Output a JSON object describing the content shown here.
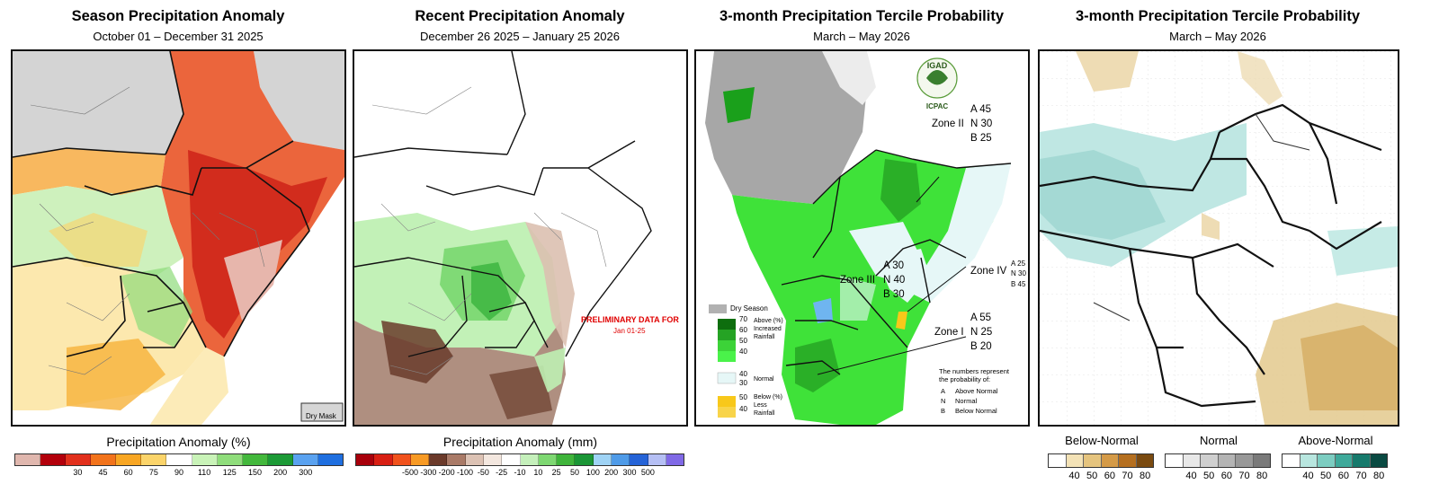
{
  "panels": [
    {
      "title": "Season Precipitation Anomaly",
      "subtitle": "October 01 – December 31 2025",
      "legend_title": "Precipitation Anomaly (%)",
      "dry_mask": "Dry Mask"
    },
    {
      "title": "Recent Precipitation Anomaly",
      "subtitle": "December 26 2025 – January 25 2026",
      "legend_title": "Precipitation Anomaly (mm)",
      "note_title": "PRELIMINARY DATA FOR",
      "note_sub": "Jan 01-25"
    },
    {
      "title": "3-month Precipitation Tercile Probability",
      "subtitle": "March – May 2026",
      "logo_text": "IGAD",
      "logo_sub": "ICPAC"
    },
    {
      "title": "3-month Precipitation Tercile Probability",
      "subtitle": "March – May 2026"
    }
  ],
  "legend1": {
    "colors": [
      "#e0b7ae",
      "#b3000b",
      "#e2301c",
      "#f2731b",
      "#f8a623",
      "#fbd46a",
      "#ffffff",
      "#c9f3b8",
      "#8fdd7b",
      "#43b83c",
      "#1c9a36",
      "#5aa2f0",
      "#1f6fe0"
    ],
    "ticks": [
      "30",
      "45",
      "60",
      "75",
      "90",
      "110",
      "125",
      "150",
      "200",
      "300"
    ]
  },
  "legend2": {
    "colors": [
      "#a8000b",
      "#d81f13",
      "#f1521c",
      "#f79a24",
      "#6b3a2a",
      "#a97a67",
      "#dcc2b4",
      "#f3e7df",
      "#ffffff",
      "#c5f0bb",
      "#7ed872",
      "#3fb43b",
      "#1b9636",
      "#9fd3f5",
      "#4f9be8",
      "#2563d7",
      "#b5bff4",
      "#8069e6"
    ],
    "ticks": [
      "-500",
      "-300",
      "-200",
      "-100",
      "-50",
      "-25",
      "-10",
      "10",
      "25",
      "50",
      "100",
      "200",
      "300",
      "500"
    ]
  },
  "panel3_legend": {
    "dry_season": "Dry Season",
    "above": [
      "70",
      "60",
      "50",
      "40"
    ],
    "above_label": "Above (%) Increased Rainfall",
    "normal": [
      "40",
      "30"
    ],
    "normal_label": "Normal",
    "below": [
      "50",
      "40"
    ],
    "below_label": "Below (%) Less Rainfall",
    "colors": {
      "dry": "#b1b1b1",
      "a70": "#0e6e0e",
      "a60": "#25a324",
      "a50": "#3cd338",
      "a40": "#4af24a",
      "normal": "#e6f7f7",
      "below": "#f8c81a"
    }
  },
  "zones": [
    {
      "name": "Zone II",
      "A": "A 45",
      "N": "N 30",
      "B": "B 25"
    },
    {
      "name": "Zone III",
      "A": "A 30",
      "N": "N 40",
      "B": "B 30"
    },
    {
      "name": "Zone IV",
      "A": "A 25",
      "N": "N 30",
      "B": "B 45"
    },
    {
      "name": "Zone I",
      "A": "A 55",
      "N": "N 25",
      "B": "B 20"
    }
  ],
  "numbers_note": {
    "line1": "The numbers represent",
    "line2": "the probability of:",
    "a": "A",
    "a_t": "Above Normal",
    "n": "N",
    "n_t": "Normal",
    "b": "B",
    "b_t": "Below Normal"
  },
  "tercile_legend": {
    "below": {
      "label": "Below-Normal",
      "colors": [
        "#ffffff",
        "#f3e2b6",
        "#e5c47e",
        "#d49a47",
        "#b56f1f",
        "#7a4a10"
      ],
      "ticks": [
        "40",
        "50",
        "60",
        "70",
        "80"
      ]
    },
    "normal": {
      "label": "Normal",
      "colors": [
        "#ffffff",
        "#e8e8e8",
        "#cfcfcf",
        "#b4b4b4",
        "#989898",
        "#7a7a7a"
      ],
      "ticks": [
        "40",
        "50",
        "60",
        "70",
        "80"
      ]
    },
    "above": {
      "label": "Above-Normal",
      "colors": [
        "#ffffff",
        "#b8e6df",
        "#7ccdc1",
        "#3ea99a",
        "#167a6c",
        "#0a4a42"
      ],
      "ticks": [
        "40",
        "50",
        "60",
        "70",
        "80"
      ]
    }
  }
}
